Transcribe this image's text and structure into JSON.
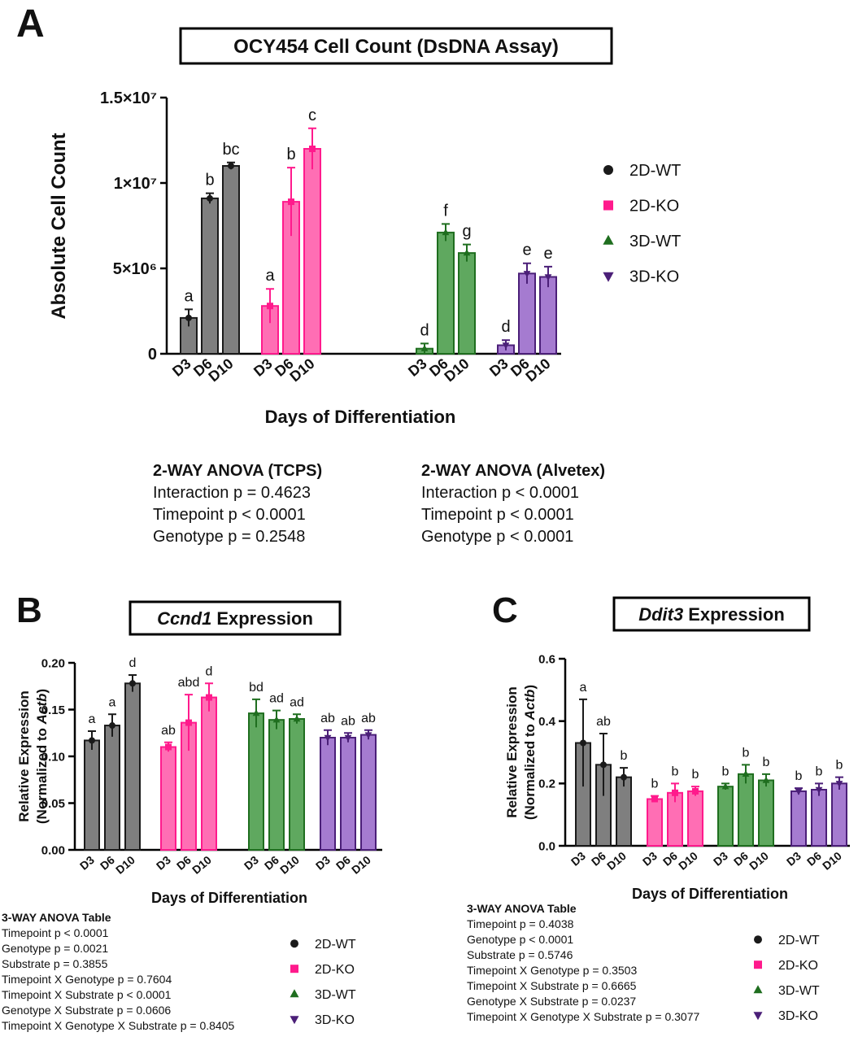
{
  "chart_data": [
    {
      "type": "bar",
      "panel": "A",
      "title": "OCY454 Cell Count  (DsDNA Assay)",
      "ylabel": "Absolute Cell Count",
      "xlabel": "Days of  Differentiation",
      "categories": [
        "D3",
        "D6",
        "D10"
      ],
      "ylim": [
        0,
        15000000
      ],
      "yticks": [
        0,
        {
          "value": 5000000,
          "label": "5×10⁶"
        },
        {
          "value": 10000000,
          "label": "1×10⁷"
        },
        {
          "value": 15000000,
          "label": "1.5×10⁷"
        }
      ],
      "series": [
        {
          "name": "2D-WT",
          "color": "#1a1a1a",
          "fill": "#7f7f7f",
          "marker": "circle",
          "values": [
            2100000,
            9100000,
            11000000
          ],
          "errors": [
            500000,
            300000,
            200000
          ],
          "letters": [
            "a",
            "b",
            "bc"
          ]
        },
        {
          "name": "2D-KO",
          "color": "#ff1a8c",
          "fill": "#ff6eb4",
          "marker": "square",
          "values": [
            2800000,
            8900000,
            12000000
          ],
          "errors": [
            1000000,
            2000000,
            1200000
          ],
          "letters": [
            "a",
            "b",
            "c"
          ]
        },
        {
          "name": "3D-WT",
          "color": "#1f6e1f",
          "fill": "#5fa85f",
          "marker": "triangle-up",
          "values": [
            300000,
            7100000,
            5900000
          ],
          "errors": [
            300000,
            500000,
            500000
          ],
          "letters": [
            "d",
            "f",
            "g"
          ]
        },
        {
          "name": "3D-KO",
          "color": "#4b1f78",
          "fill": "#a57bd0",
          "marker": "triangle-down",
          "values": [
            500000,
            4700000,
            4500000
          ],
          "errors": [
            300000,
            600000,
            600000
          ],
          "letters": [
            "d",
            "e",
            "e"
          ]
        }
      ],
      "stats": [
        {
          "heading": "2-WAY ANOVA (TCPS)",
          "lines": [
            "Interaction p = 0.4623",
            "Timepoint p < 0.0001",
            "Genotype p = 0.2548"
          ]
        },
        {
          "heading": "2-WAY ANOVA (Alvetex)",
          "lines": [
            "Interaction p < 0.0001",
            "Timepoint p < 0.0001",
            "Genotype p < 0.0001"
          ]
        }
      ]
    },
    {
      "type": "bar",
      "panel": "B",
      "title_italic": "Ccnd1",
      "title": "Expression",
      "ylabel": "Relative Expression",
      "ylabel2": [
        "(Normalized to ",
        "Actb",
        ")"
      ],
      "xlabel": "Days of Differentiation",
      "categories": [
        "D3",
        "D6",
        "D10"
      ],
      "ylim": [
        0,
        0.2
      ],
      "yticks": [
        {
          "value": 0,
          "label": "0.00"
        },
        {
          "value": 0.05,
          "label": "0.05"
        },
        {
          "value": 0.1,
          "label": "0.10"
        },
        {
          "value": 0.15,
          "label": "0.15"
        },
        {
          "value": 0.2,
          "label": "0.20"
        }
      ],
      "series": [
        {
          "name": "2D-WT",
          "color": "#1a1a1a",
          "fill": "#7f7f7f",
          "marker": "circle",
          "values": [
            0.117,
            0.133,
            0.178
          ],
          "errors": [
            0.01,
            0.012,
            0.009
          ],
          "letters": [
            "a",
            "a",
            "d"
          ]
        },
        {
          "name": "2D-KO",
          "color": "#ff1a8c",
          "fill": "#ff6eb4",
          "marker": "square",
          "values": [
            0.11,
            0.136,
            0.163
          ],
          "errors": [
            0.005,
            0.03,
            0.015
          ],
          "letters": [
            "ab",
            "abd",
            "d"
          ]
        },
        {
          "name": "3D-WT",
          "color": "#1f6e1f",
          "fill": "#5fa85f",
          "marker": "triangle-up",
          "values": [
            0.146,
            0.139,
            0.14
          ],
          "errors": [
            0.015,
            0.01,
            0.005
          ],
          "letters": [
            "bd",
            "ad",
            "ad"
          ]
        },
        {
          "name": "3D-KO",
          "color": "#4b1f78",
          "fill": "#a57bd0",
          "marker": "triangle-down",
          "values": [
            0.12,
            0.12,
            0.123
          ],
          "errors": [
            0.008,
            0.005,
            0.005
          ],
          "letters": [
            "ab",
            "ab",
            "ab"
          ]
        }
      ],
      "stats": [
        {
          "heading": "3-WAY ANOVA Table",
          "lines": [
            "Timepoint  p < 0.0001",
            "Genotype p = 0.0021",
            "Substrate p = 0.3855",
            "Timepoint X Genotype  p = 0.7604",
            "Timepoint X Substrate  p < 0.0001",
            "Genotype X  Substrate p = 0.0606",
            "Timepoint X Genotype X Substrate p = 0.8405"
          ]
        }
      ]
    },
    {
      "type": "bar",
      "panel": "C",
      "title_italic": "Ddit3",
      "title": "Expression",
      "ylabel": "Relative Expression",
      "ylabel2": [
        "(Normalized to ",
        "Actb",
        ")"
      ],
      "xlabel": "Days of Differentiation",
      "categories": [
        "D3",
        "D6",
        "D10"
      ],
      "ylim": [
        0,
        0.6
      ],
      "yticks": [
        {
          "value": 0,
          "label": "0.0"
        },
        0.2,
        0.4,
        0.6
      ],
      "series": [
        {
          "name": "2D-WT",
          "color": "#1a1a1a",
          "fill": "#7f7f7f",
          "marker": "circle",
          "values": [
            0.33,
            0.26,
            0.22
          ],
          "errors": [
            0.14,
            0.1,
            0.03
          ],
          "letters": [
            "a",
            "ab",
            "b"
          ]
        },
        {
          "name": "2D-KO",
          "color": "#ff1a8c",
          "fill": "#ff6eb4",
          "marker": "square",
          "values": [
            0.15,
            0.17,
            0.175
          ],
          "errors": [
            0.01,
            0.03,
            0.015
          ],
          "letters": [
            "b",
            "b",
            "b"
          ]
        },
        {
          "name": "3D-WT",
          "color": "#1f6e1f",
          "fill": "#5fa85f",
          "marker": "triangle-up",
          "values": [
            0.19,
            0.23,
            0.21
          ],
          "errors": [
            0.01,
            0.03,
            0.02
          ],
          "letters": [
            "b",
            "b",
            "b"
          ]
        },
        {
          "name": "3D-KO",
          "color": "#4b1f78",
          "fill": "#a57bd0",
          "marker": "triangle-down",
          "values": [
            0.175,
            0.18,
            0.2
          ],
          "errors": [
            0.01,
            0.02,
            0.02
          ],
          "letters": [
            "b",
            "b",
            "b"
          ]
        }
      ],
      "stats": [
        {
          "heading": "3-WAY ANOVA Table",
          "lines": [
            "Timepoint  p = 0.4038",
            "Genotype p < 0.0001",
            "Substrate p = 0.5746",
            "Timepoint X Genotype  p = 0.3503",
            "Timepoint X Substrate  p = 0.6665",
            "Genotype X  Substrate p = 0.0237",
            "Timepoint X Genotype X Substrate p = 0.3077"
          ]
        }
      ]
    }
  ]
}
